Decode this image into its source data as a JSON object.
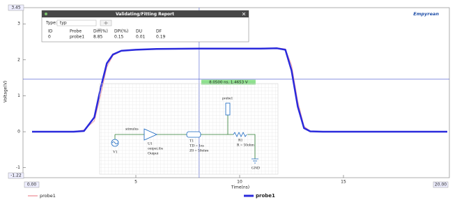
{
  "window": {
    "title": "Validating/Fitting Report",
    "type_label": "Type:",
    "type_value": "typ",
    "columns": [
      "ID",
      "Probe",
      "Diff(%)",
      "DPI(%)",
      "DU",
      "DF"
    ],
    "rows": [
      [
        "0",
        "probe1",
        "8.85",
        "0.15",
        "0.01",
        "0.19"
      ]
    ]
  },
  "logo": "Empyrean",
  "chart_data": {
    "type": "line",
    "ylabel": "Voltage(V)",
    "xlabel": "Time(ns)",
    "xlim": [
      0,
      20
    ],
    "ylim": [
      -1.22,
      3.45
    ],
    "xticks": [
      {
        "value": 0,
        "label": "0.00"
      },
      5,
      10,
      15,
      {
        "value": 20,
        "label": "20.00"
      }
    ],
    "yticks": [
      -1.22,
      -1,
      0,
      1,
      2,
      3,
      3.45
    ],
    "x": [
      0,
      2,
      2.5,
      3,
      3.3,
      3.6,
      3.9,
      4.3,
      5,
      6,
      8,
      10,
      11,
      11.8,
      12.2,
      12.5,
      12.8,
      13.1,
      13.4,
      14,
      16,
      18,
      20
    ],
    "series": [
      {
        "name": "probe1",
        "color": "#f0a0a8",
        "width": 1,
        "bold": false,
        "values": [
          0,
          0,
          0.05,
          0.3,
          1.0,
          1.8,
          2.12,
          2.24,
          2.28,
          2.3,
          2.31,
          2.31,
          2.31,
          2.33,
          2.3,
          1.85,
          0.85,
          0.15,
          0.02,
          0,
          0,
          0,
          0
        ]
      },
      {
        "name": "probe1",
        "color": "#2a2adc",
        "width": 2.5,
        "bold": true,
        "values": [
          0,
          0,
          0.02,
          0.4,
          1.2,
          1.9,
          2.15,
          2.25,
          2.28,
          2.3,
          2.31,
          2.31,
          2.31,
          2.32,
          2.28,
          1.7,
          0.7,
          0.1,
          0.01,
          0,
          0,
          0,
          0
        ]
      }
    ],
    "cursor": {
      "x": 8.05,
      "y": 1.4653,
      "label": "8.0500 ns, 1.4653 V"
    }
  },
  "schematic": {
    "source": "V1",
    "net": "stimulus",
    "buffer": "U1",
    "buffer_model": "output.ibs",
    "buffer_pin": "Output",
    "tline": "T1",
    "tline_td": "TD = 1ns",
    "tline_z0": "Z0 = 50ohm",
    "probe": "probe1",
    "resistor": "R1",
    "resistor_value": "R = 50ohm",
    "ground": "GND"
  }
}
